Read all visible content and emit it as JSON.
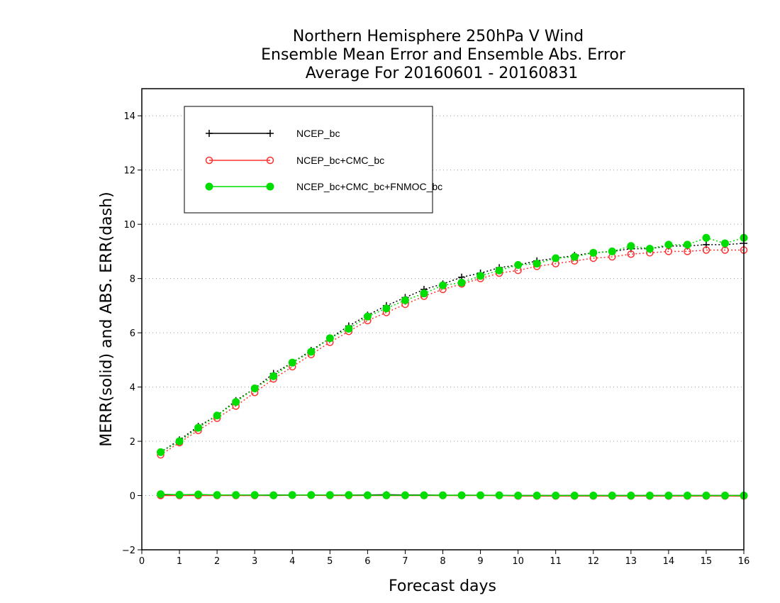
{
  "chart_data": {
    "type": "line",
    "title": [
      "Northern Hemisphere 250hPa V Wind",
      "Ensemble Mean Error and Ensemble Abs. Error",
      "Average For 20160601 - 20160831"
    ],
    "xlabel": "Forecast days",
    "ylabel": "MERR(solid) and ABS. ERR(dash)",
    "xlim": [
      0,
      16
    ],
    "ylim": [
      -2,
      15
    ],
    "xticks": [
      0,
      1,
      2,
      3,
      4,
      5,
      6,
      7,
      8,
      9,
      10,
      11,
      12,
      13,
      14,
      15,
      16
    ],
    "yticks": [
      -2,
      0,
      2,
      4,
      6,
      8,
      10,
      12,
      14
    ],
    "grid": "horizontal dotted",
    "legend_position": "top-left",
    "x": [
      0.5,
      1,
      1.5,
      2,
      2.5,
      3,
      3.5,
      4,
      4.5,
      5,
      5.5,
      6,
      6.5,
      7,
      7.5,
      8,
      8.5,
      9,
      9.5,
      10,
      10.5,
      11,
      11.5,
      12,
      12.5,
      13,
      13.5,
      14,
      14.5,
      15,
      15.5,
      16
    ],
    "series": [
      {
        "name": "NCEP_bc",
        "color": "#000000",
        "marker": "plus",
        "abs_err_dash": [
          1.6,
          2.05,
          2.55,
          2.95,
          3.5,
          3.95,
          4.5,
          4.9,
          5.35,
          5.8,
          6.25,
          6.65,
          7.0,
          7.3,
          7.6,
          7.8,
          8.05,
          8.2,
          8.4,
          8.5,
          8.65,
          8.75,
          8.85,
          8.95,
          9.0,
          9.1,
          9.1,
          9.2,
          9.2,
          9.25,
          9.25,
          9.3
        ],
        "mean_err_solid": [
          0.03,
          0.01,
          0.01,
          0.01,
          0.01,
          0.01,
          0.02,
          0.02,
          0.02,
          0.02,
          0.02,
          0.02,
          0.03,
          0.02,
          0.02,
          0.01,
          0.01,
          0.01,
          0.0,
          0.0,
          0.0,
          0.0,
          0.0,
          0.0,
          0.0,
          0.0,
          0.0,
          0.0,
          0.0,
          0.0,
          0.0,
          0.0
        ]
      },
      {
        "name": "NCEP_bc+CMC_bc",
        "color": "#ff3030",
        "marker": "open-circle",
        "abs_err_dash": [
          1.5,
          1.95,
          2.4,
          2.85,
          3.3,
          3.8,
          4.3,
          4.75,
          5.2,
          5.65,
          6.05,
          6.45,
          6.75,
          7.05,
          7.35,
          7.6,
          7.8,
          8.0,
          8.2,
          8.3,
          8.45,
          8.55,
          8.65,
          8.75,
          8.8,
          8.9,
          8.95,
          9.0,
          9.0,
          9.05,
          9.05,
          9.05
        ],
        "mean_err_solid": [
          0.0,
          0.0,
          0.0,
          0.0,
          0.0,
          0.0,
          0.0,
          0.01,
          0.01,
          0.0,
          0.0,
          0.0,
          0.0,
          0.0,
          0.0,
          0.0,
          0.0,
          0.0,
          0.0,
          -0.02,
          -0.02,
          -0.02,
          -0.02,
          -0.02,
          -0.02,
          -0.02,
          -0.02,
          -0.02,
          -0.02,
          -0.02,
          -0.02,
          -0.02
        ]
      },
      {
        "name": "NCEP_bc+CMC_bc+FNMOC_bc",
        "color": "#00dd00",
        "marker": "filled-circle",
        "abs_err_dash": [
          1.6,
          2.0,
          2.5,
          2.95,
          3.45,
          3.95,
          4.4,
          4.9,
          5.3,
          5.8,
          6.15,
          6.6,
          6.9,
          7.2,
          7.45,
          7.75,
          7.85,
          8.1,
          8.3,
          8.5,
          8.55,
          8.75,
          8.8,
          8.95,
          9.0,
          9.2,
          9.1,
          9.25,
          9.25,
          9.5,
          9.3,
          9.5
        ],
        "mean_err_solid": [
          0.05,
          0.03,
          0.04,
          0.02,
          0.02,
          0.02,
          0.01,
          0.02,
          0.02,
          0.02,
          0.02,
          0.01,
          0.01,
          0.01,
          0.01,
          0.01,
          0.01,
          0.01,
          0.01,
          0.0,
          0.0,
          0.0,
          0.0,
          0.0,
          0.0,
          0.0,
          0.0,
          0.0,
          0.0,
          0.0,
          0.0,
          0.0
        ]
      }
    ]
  }
}
